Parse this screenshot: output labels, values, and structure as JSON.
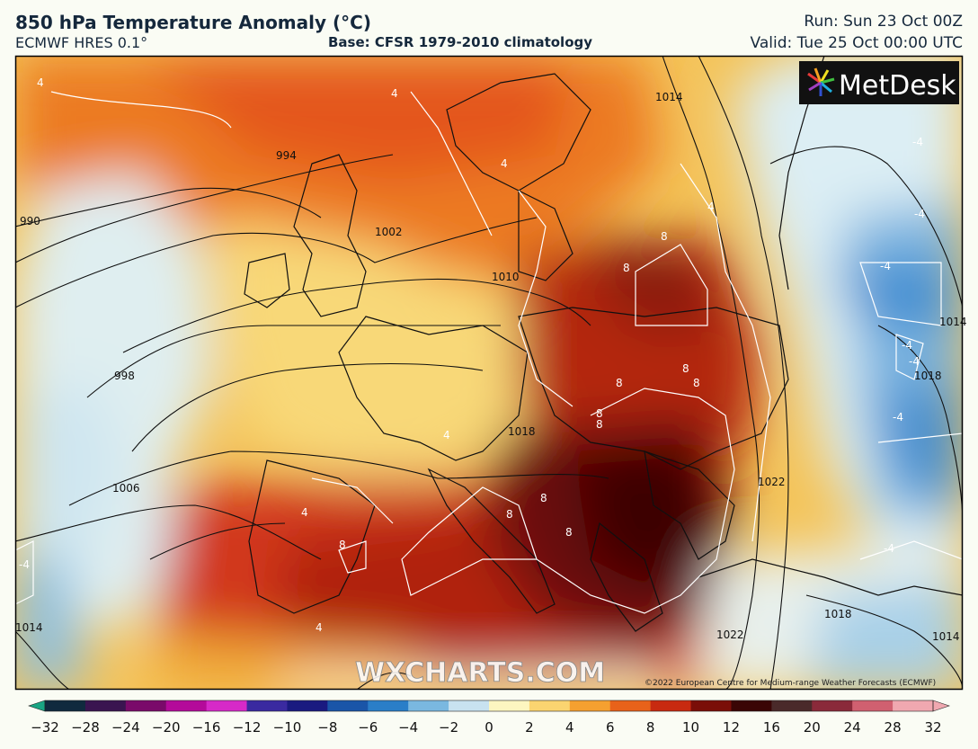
{
  "header": {
    "title": "850 hPa Temperature Anomaly (°C)",
    "model": "ECMWF HRES 0.1°",
    "base": "Base: CFSR 1979-2010 climatology",
    "run": "Run: Sun 23 Oct 00Z",
    "valid": "Valid: Tue 25 Oct 00:00 UTC"
  },
  "branding": {
    "logo_text": "MetDesk",
    "watermark": "WXCHARTS.COM",
    "copyright": "©2022 European Centre for Medium-range Weather Forecasts (ECMWF)"
  },
  "isobar_labels": [
    "994",
    "990",
    "1002",
    "1010",
    "998",
    "1006",
    "1018",
    "1014",
    "1022",
    "1018",
    "1014",
    "1018",
    "1014",
    "1014",
    "1022"
  ],
  "anomaly_labels": [
    "4",
    "4",
    "4",
    "4",
    "8",
    "8",
    "8",
    "8",
    "8",
    "8",
    "8",
    "8",
    "8",
    "8",
    "8",
    "4",
    "4",
    "-4",
    "-4",
    "-4",
    "-4",
    "-4",
    "-4",
    "-4",
    "4",
    "-4"
  ],
  "colorbar": {
    "ticks": [
      "−32",
      "−28",
      "−24",
      "−20",
      "−16",
      "−12",
      "−10",
      "−8",
      "−6",
      "−4",
      "−2",
      "0",
      "2",
      "4",
      "6",
      "8",
      "10",
      "12",
      "16",
      "20",
      "24",
      "28",
      "32"
    ],
    "colors": [
      "#1aa583",
      "#102a3e",
      "#3a1450",
      "#7a0a6a",
      "#b40a9a",
      "#d62ac8",
      "#3a2aa0",
      "#1a1a80",
      "#1a55a8",
      "#2a7ec8",
      "#7ab8e0",
      "#c8e2f0",
      "#fdf6c0",
      "#fbd470",
      "#f5a030",
      "#e8621a",
      "#c82a10",
      "#7a0e08",
      "#3a0505",
      "#4a2a2a",
      "#8a2a3a",
      "#d06070",
      "#f0a8b0"
    ]
  },
  "colors": {
    "hot": "#7a1408",
    "warm": "#e8621a",
    "mild": "#f6c85a",
    "neutral": "#fbf6dc",
    "cool": "#8cc4e8",
    "cold": "#2a78c8"
  }
}
